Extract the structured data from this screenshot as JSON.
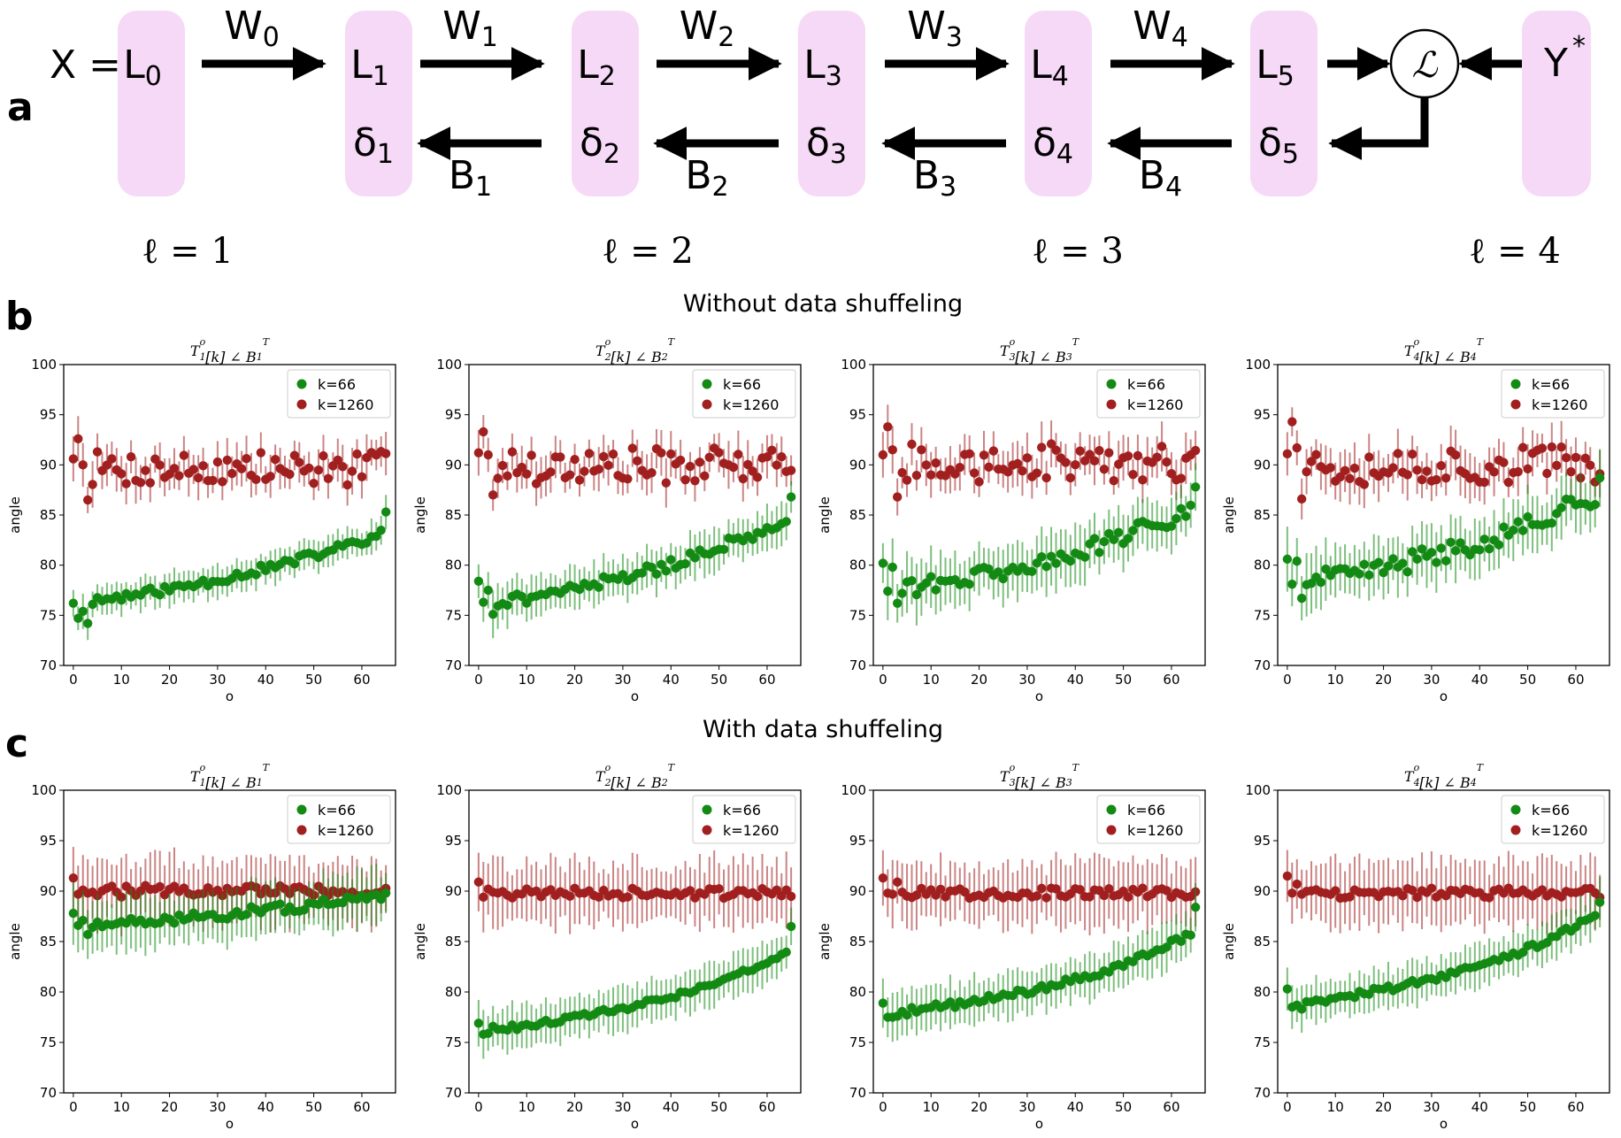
{
  "panel_letters": [
    "a",
    "b",
    "c"
  ],
  "diagram": {
    "layers": [
      {
        "top": "L",
        "top_sub": "0",
        "bottom": "",
        "bottom_sub": ""
      },
      {
        "top": "L",
        "top_sub": "1",
        "bottom": "δ",
        "bottom_sub": "1"
      },
      {
        "top": "L",
        "top_sub": "2",
        "bottom": "δ",
        "bottom_sub": "2"
      },
      {
        "top": "L",
        "top_sub": "3",
        "bottom": "δ",
        "bottom_sub": "3"
      },
      {
        "top": "L",
        "top_sub": "4",
        "bottom": "δ",
        "bottom_sub": "4"
      },
      {
        "top": "L",
        "top_sub": "5",
        "bottom": "δ",
        "bottom_sub": "5"
      }
    ],
    "input_label": "X =",
    "target_label": "Y",
    "target_sup": "*",
    "loss_symbol": "ℒ",
    "forward_weights": [
      {
        "base": "W",
        "sub": "0"
      },
      {
        "base": "W",
        "sub": "1"
      },
      {
        "base": "W",
        "sub": "2"
      },
      {
        "base": "W",
        "sub": "3"
      },
      {
        "base": "W",
        "sub": "4"
      }
    ],
    "feedback_weights": [
      {
        "base": "B",
        "sub": "1"
      },
      {
        "base": "B",
        "sub": "2"
      },
      {
        "base": "B",
        "sub": "3"
      },
      {
        "base": "B",
        "sub": "4"
      }
    ],
    "ell_labels": [
      "ℓ = 1",
      "ℓ = 2",
      "ℓ = 3",
      "ℓ = 4"
    ],
    "colors": {
      "layer_fill": "#f6d9f6",
      "arrow": "#000000"
    }
  },
  "row_titles": [
    "Without data shuffeling",
    "With data shuffeling"
  ],
  "chart_data": [
    {
      "type": "scatter",
      "row": "b",
      "subplot": 1,
      "title": "T1o[k] ∠ B1T",
      "title_parts": {
        "T_sub": "1",
        "B_sub": "1"
      },
      "xlabel": "o",
      "ylabel": "angle",
      "xlim": [
        -2,
        67
      ],
      "ylim": [
        70,
        100
      ],
      "xticks": [
        "0",
        "10",
        "20",
        "30",
        "40",
        "50",
        "60"
      ],
      "yticks": [
        "70",
        "75",
        "80",
        "85",
        "90",
        "95",
        "100"
      ],
      "legend": "upper right",
      "series": [
        {
          "name": "k=66",
          "color": "#138a13",
          "start": 76.2,
          "end": 83.1,
          "last": 85.3,
          "shape": 2.2,
          "err": 1.5,
          "noise": 0.45,
          "seed": 11,
          "first_points": [
            76.2,
            74.7,
            75.4,
            74.2
          ]
        },
        {
          "name": "k=1260",
          "color": "#a11f1f",
          "center": 89.6,
          "spread": 1.8,
          "err": 1.8,
          "seed": 7,
          "first_points": [
            90.6,
            92.6,
            90.0,
            86.5
          ]
        }
      ]
    },
    {
      "type": "scatter",
      "row": "b",
      "subplot": 2,
      "title": "T2o[k] ∠ B2T",
      "title_parts": {
        "T_sub": "2",
        "B_sub": "2"
      },
      "xlabel": "o",
      "ylabel": "angle",
      "xlim": [
        -2,
        67
      ],
      "ylim": [
        70,
        100
      ],
      "xticks": [
        "0",
        "10",
        "20",
        "30",
        "40",
        "50",
        "60"
      ],
      "yticks": [
        "70",
        "75",
        "80",
        "85",
        "90",
        "95",
        "100"
      ],
      "legend": "upper right",
      "series": [
        {
          "name": "k=66",
          "color": "#138a13",
          "start": 76.0,
          "end": 84.6,
          "last": 86.8,
          "shape": 2.6,
          "err": 2.0,
          "noise": 0.6,
          "seed": 21,
          "first_points": [
            78.4,
            76.3,
            77.5,
            75.1
          ]
        },
        {
          "name": "k=1260",
          "color": "#a11f1f",
          "center": 89.9,
          "spread": 1.8,
          "err": 1.9,
          "seed": 17,
          "first_points": [
            91.2,
            93.3,
            91.0,
            87.0
          ]
        }
      ]
    },
    {
      "type": "scatter",
      "row": "b",
      "subplot": 3,
      "title": "T3o[k] ∠ B3T",
      "title_parts": {
        "T_sub": "3",
        "B_sub": "3"
      },
      "xlabel": "o",
      "ylabel": "angle",
      "xlim": [
        -2,
        67
      ],
      "ylim": [
        70,
        100
      ],
      "xticks": [
        "0",
        "10",
        "20",
        "30",
        "40",
        "50",
        "60"
      ],
      "yticks": [
        "70",
        "75",
        "80",
        "85",
        "90",
        "95",
        "100"
      ],
      "legend": "upper right",
      "series": [
        {
          "name": "k=66",
          "color": "#138a13",
          "start": 77.3,
          "end": 85.7,
          "last": 87.8,
          "shape": 2.8,
          "err": 2.5,
          "noise": 0.9,
          "seed": 31,
          "first_points": [
            80.2,
            77.4,
            79.8,
            76.2
          ]
        },
        {
          "name": "k=1260",
          "color": "#a11f1f",
          "center": 90.2,
          "spread": 1.9,
          "err": 2.0,
          "seed": 27,
          "first_points": [
            91.0,
            93.8,
            91.5,
            86.8
          ]
        }
      ]
    },
    {
      "type": "scatter",
      "row": "b",
      "subplot": 4,
      "title": "T4o[k] ∠ B4T",
      "title_parts": {
        "T_sub": "4",
        "B_sub": "4"
      },
      "xlabel": "o",
      "ylabel": "angle",
      "xlim": [
        -2,
        67
      ],
      "ylim": [
        70,
        100
      ],
      "xticks": [
        "0",
        "10",
        "20",
        "30",
        "40",
        "50",
        "60"
      ],
      "yticks": [
        "70",
        "75",
        "80",
        "85",
        "90",
        "95",
        "100"
      ],
      "legend": "upper right",
      "series": [
        {
          "name": "k=66",
          "color": "#138a13",
          "start": 78.0,
          "end": 87.0,
          "last": 88.7,
          "shape": 2.6,
          "err": 2.6,
          "noise": 1.0,
          "seed": 41,
          "first_points": [
            80.6,
            78.1,
            80.4,
            76.7
          ]
        },
        {
          "name": "k=1260",
          "color": "#a11f1f",
          "center": 90.0,
          "spread": 2.0,
          "err": 2.0,
          "seed": 37,
          "first_points": [
            91.1,
            94.3,
            91.7,
            86.6
          ]
        }
      ]
    },
    {
      "type": "scatter",
      "row": "c",
      "subplot": 1,
      "title": "T1o[k] ∠ B1T",
      "title_parts": {
        "T_sub": "1",
        "B_sub": "1"
      },
      "xlabel": "o",
      "ylabel": "angle",
      "xlim": [
        -2,
        67
      ],
      "ylim": [
        70,
        100
      ],
      "xticks": [
        "0",
        "10",
        "20",
        "30",
        "40",
        "50",
        "60"
      ],
      "yticks": [
        "70",
        "75",
        "80",
        "85",
        "90",
        "95",
        "100"
      ],
      "legend": "upper right",
      "series": [
        {
          "name": "k=66",
          "color": "#138a13",
          "start": 86.3,
          "end": 89.3,
          "last": 89.8,
          "shape": 1.2,
          "err": 2.6,
          "noise": 0.5,
          "seed": 51,
          "first_points": [
            87.8,
            86.6,
            87.1,
            85.7
          ]
        },
        {
          "name": "k=1260",
          "color": "#a11f1f",
          "center": 90.0,
          "spread": 0.6,
          "err": 3.0,
          "seed": 47,
          "first_points": [
            91.3,
            89.7,
            90.1,
            89.8
          ]
        }
      ]
    },
    {
      "type": "scatter",
      "row": "c",
      "subplot": 2,
      "title": "T2o[k] ∠ B2T",
      "title_parts": {
        "T_sub": "2",
        "B_sub": "2"
      },
      "xlabel": "o",
      "ylabel": "angle",
      "xlim": [
        -2,
        67
      ],
      "ylim": [
        70,
        100
      ],
      "xticks": [
        "0",
        "10",
        "20",
        "30",
        "40",
        "50",
        "60"
      ],
      "yticks": [
        "70",
        "75",
        "80",
        "85",
        "90",
        "95",
        "100"
      ],
      "legend": "upper right",
      "series": [
        {
          "name": "k=66",
          "color": "#138a13",
          "start": 76.0,
          "end": 83.8,
          "last": 86.5,
          "shape": 3.0,
          "err": 2.0,
          "noise": 0.3,
          "seed": 61,
          "first_points": [
            76.9,
            75.8,
            75.9,
            76.6
          ]
        },
        {
          "name": "k=1260",
          "color": "#a11f1f",
          "center": 89.8,
          "spread": 0.5,
          "err": 3.0,
          "seed": 57,
          "first_points": [
            90.9,
            89.4,
            90.2,
            89.9
          ]
        }
      ]
    },
    {
      "type": "scatter",
      "row": "c",
      "subplot": 3,
      "title": "T3o[k] ∠ B3T",
      "title_parts": {
        "T_sub": "3",
        "B_sub": "3"
      },
      "xlabel": "o",
      "ylabel": "angle",
      "xlim": [
        -2,
        67
      ],
      "ylim": [
        70,
        100
      ],
      "xticks": [
        "0",
        "10",
        "20",
        "30",
        "40",
        "50",
        "60"
      ],
      "yticks": [
        "70",
        "75",
        "80",
        "85",
        "90",
        "95",
        "100"
      ],
      "legend": "upper right",
      "series": [
        {
          "name": "k=66",
          "color": "#138a13",
          "start": 77.7,
          "end": 85.9,
          "last": 88.4,
          "shape": 3.6,
          "err": 2.2,
          "noise": 0.35,
          "seed": 71,
          "first_points": [
            78.9,
            77.5,
            77.5,
            77.6
          ]
        },
        {
          "name": "k=1260",
          "color": "#a11f1f",
          "center": 89.8,
          "spread": 0.5,
          "err": 3.0,
          "seed": 67,
          "first_points": [
            91.3,
            89.8,
            89.7,
            90.9
          ]
        }
      ]
    },
    {
      "type": "scatter",
      "row": "c",
      "subplot": 4,
      "title": "T4o[k] ∠ B4T",
      "title_parts": {
        "T_sub": "4",
        "B_sub": "4"
      },
      "xlabel": "o",
      "ylabel": "angle",
      "xlim": [
        -2,
        67
      ],
      "ylim": [
        70,
        100
      ],
      "xticks": [
        "0",
        "10",
        "20",
        "30",
        "40",
        "50",
        "60"
      ],
      "yticks": [
        "70",
        "75",
        "80",
        "85",
        "90",
        "95",
        "100"
      ],
      "legend": "upper right",
      "series": [
        {
          "name": "k=66",
          "color": "#138a13",
          "start": 78.6,
          "end": 87.6,
          "last": 88.9,
          "shape": 3.2,
          "err": 2.0,
          "noise": 0.3,
          "seed": 81,
          "first_points": [
            80.3,
            78.5,
            78.7,
            78.3
          ]
        },
        {
          "name": "k=1260",
          "color": "#a11f1f",
          "center": 89.8,
          "spread": 0.5,
          "err": 3.0,
          "seed": 77,
          "first_points": [
            91.5,
            89.8,
            90.7,
            89.7
          ]
        }
      ]
    }
  ]
}
